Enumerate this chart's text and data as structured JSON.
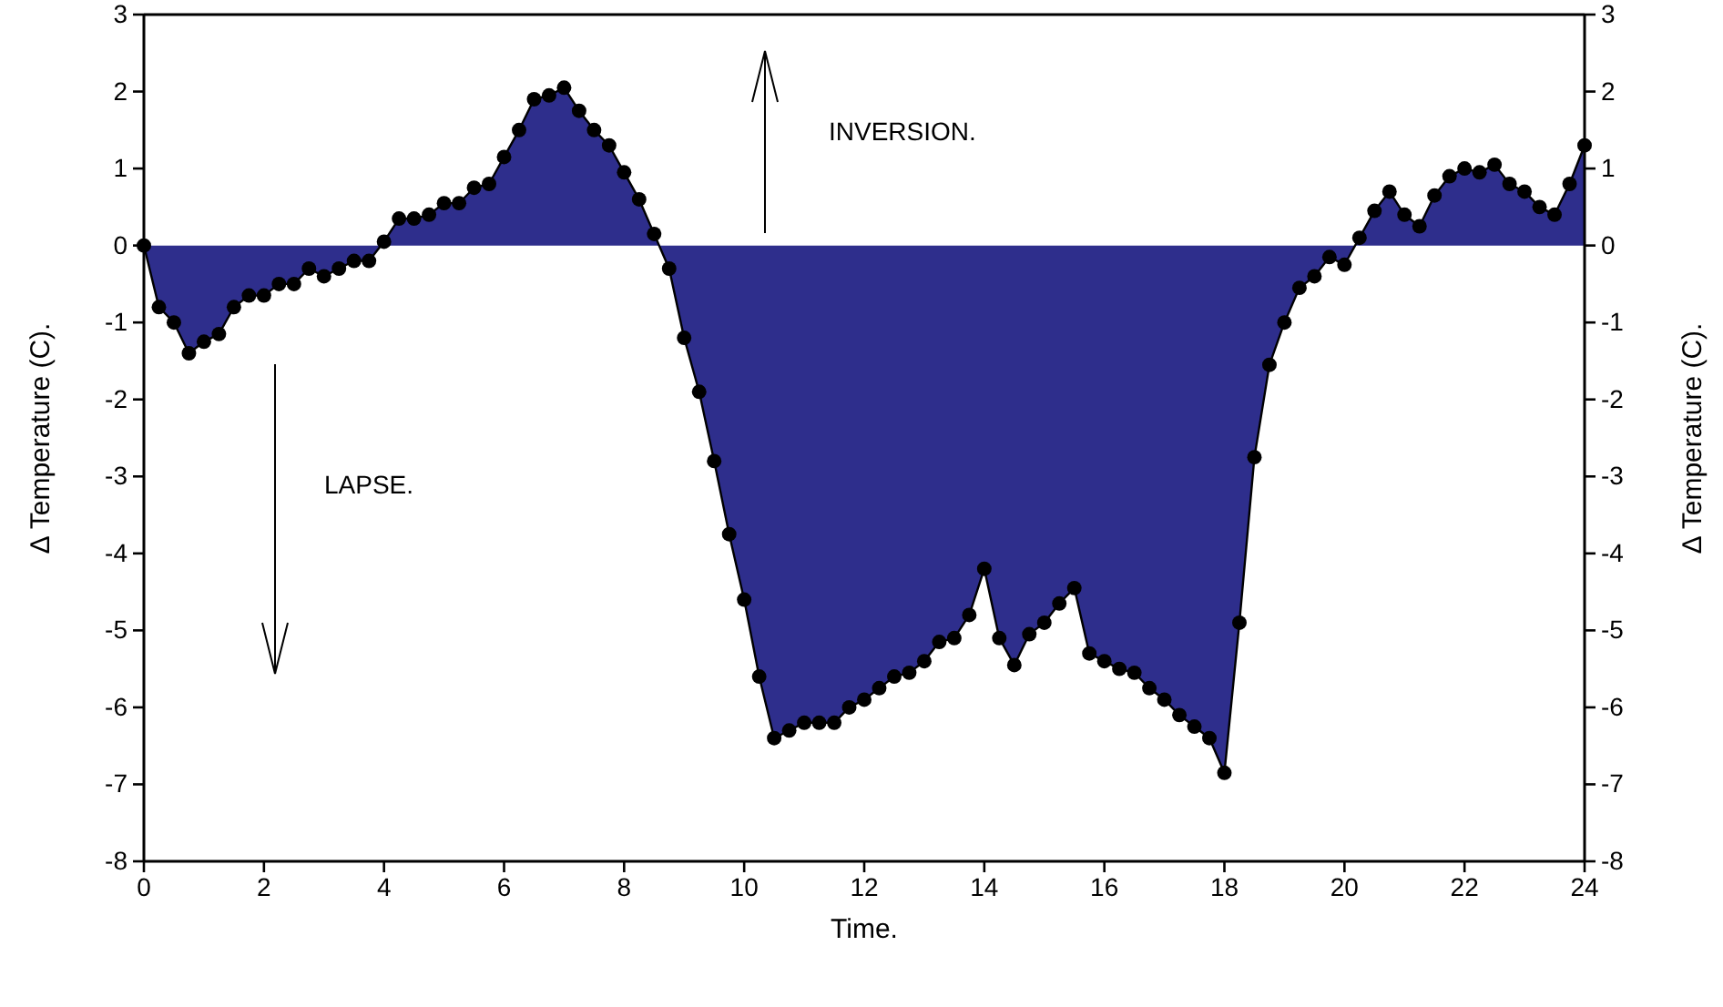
{
  "chart_data": {
    "type": "area",
    "xlabel": "Time.",
    "ylabel": "∆ Temperature (C).",
    "y2label": "∆ Temperature (C).",
    "x": [
      0,
      0.25,
      0.5,
      0.75,
      1,
      1.25,
      1.5,
      1.75,
      2,
      2.25,
      2.5,
      2.75,
      3,
      3.25,
      3.5,
      3.75,
      4,
      4.25,
      4.5,
      4.75,
      5,
      5.25,
      5.5,
      5.75,
      6,
      6.25,
      6.5,
      6.75,
      7,
      7.25,
      7.5,
      7.75,
      8,
      8.25,
      8.5,
      8.75,
      9,
      9.25,
      9.5,
      9.75,
      10,
      10.25,
      10.5,
      10.75,
      11,
      11.25,
      11.5,
      11.75,
      12,
      12.25,
      12.5,
      12.75,
      13,
      13.25,
      13.5,
      13.75,
      14,
      14.25,
      14.5,
      14.75,
      15,
      15.25,
      15.5,
      15.75,
      16,
      16.25,
      16.5,
      16.75,
      17,
      17.25,
      17.5,
      17.75,
      18,
      18.25,
      18.5,
      18.75,
      19,
      19.25,
      19.5,
      19.75,
      20,
      20.25,
      20.5,
      20.75,
      21,
      21.25,
      21.5,
      21.75,
      22,
      22.25,
      22.5,
      22.75,
      23,
      23.25,
      23.5,
      23.75,
      24
    ],
    "series": [
      {
        "color": "#2e2e8c",
        "values": [
          0,
          -0.8,
          -1.0,
          -1.4,
          -1.25,
          -1.15,
          -0.8,
          -0.65,
          -0.65,
          -0.5,
          -0.5,
          -0.3,
          -0.4,
          -0.3,
          -0.2,
          -0.2,
          0.05,
          0.35,
          0.35,
          0.4,
          0.55,
          0.55,
          0.75,
          0.8,
          1.15,
          1.5,
          1.9,
          1.95,
          2.05,
          1.75,
          1.5,
          1.3,
          0.95,
          0.6,
          0.15,
          -0.3,
          -1.2,
          -1.9,
          -2.8,
          -3.75,
          -4.6,
          -5.6,
          -6.4,
          -6.3,
          -6.2,
          -6.2,
          -6.2,
          -6.0,
          -5.9,
          -5.75,
          -5.6,
          -5.55,
          -5.4,
          -5.15,
          -5.1,
          -4.8,
          -4.2,
          -5.1,
          -5.45,
          -5.05,
          -4.9,
          -4.65,
          -4.45,
          -5.3,
          -5.4,
          -5.5,
          -5.55,
          -5.75,
          -5.9,
          -6.1,
          -6.25,
          -6.4,
          -6.85,
          -4.9,
          -2.75,
          -1.55,
          -1.0,
          -0.55,
          -0.4,
          -0.15,
          -0.25,
          0.1,
          0.45,
          0.7,
          0.4,
          0.25,
          0.65,
          0.9,
          1.0,
          0.95,
          1.05,
          0.8,
          0.7,
          0.5,
          0.4,
          0.8,
          1.3
        ]
      }
    ],
    "xlim": [
      0,
      24
    ],
    "xticks": [
      0,
      2,
      4,
      6,
      8,
      10,
      12,
      14,
      16,
      18,
      20,
      22,
      24
    ],
    "ylim": [
      -8,
      3
    ],
    "yticks": [
      -8,
      -7,
      -6,
      -5,
      -4,
      -3,
      -2,
      -1,
      0,
      1,
      2,
      3
    ],
    "y2lim": [
      -8,
      3
    ],
    "y2ticks": [
      -8,
      -7,
      -6,
      -5,
      -4,
      -3,
      -2,
      -1,
      0,
      1,
      2,
      3
    ],
    "annotations": [
      "INVERSION.",
      "LAPSE."
    ],
    "marker": "circle"
  }
}
